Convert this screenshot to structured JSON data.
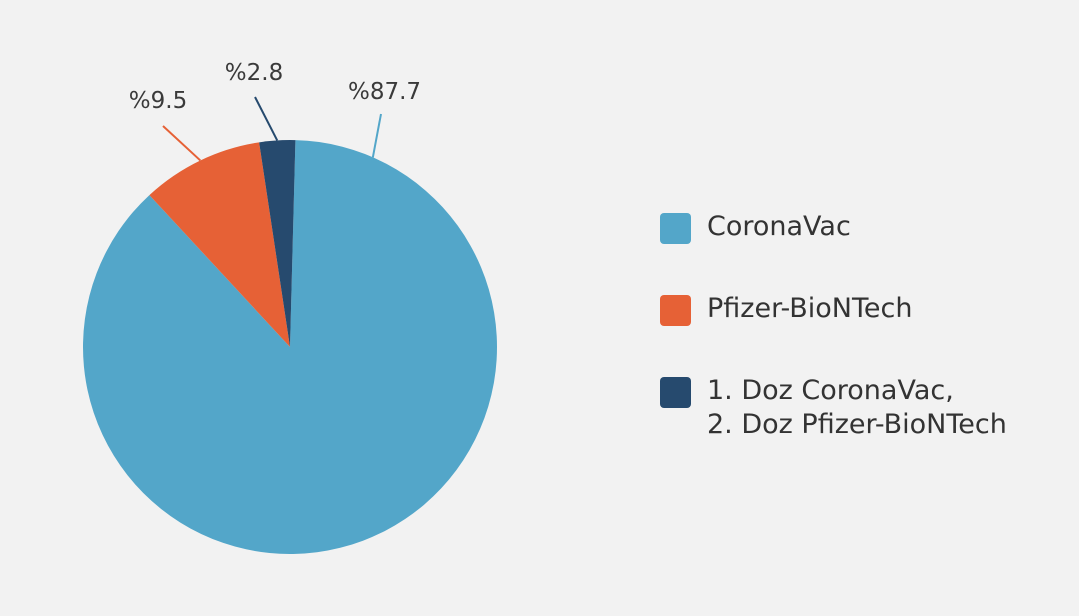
{
  "chart_data": {
    "type": "pie",
    "slices": [
      {
        "value": 87.7,
        "label": "%87.7",
        "legend": [
          "CoronaVac"
        ],
        "color": "#53a6c9"
      },
      {
        "value": 9.5,
        "label": "%9.5",
        "legend": [
          "Pfizer-BioNTech"
        ],
        "color": "#e66136"
      },
      {
        "value": 2.8,
        "label": "%2.8",
        "legend": [
          "1. Doz CoronaVac,",
          "2. Doz Pfizer-BioNTech"
        ],
        "color": "#264a6e"
      }
    ],
    "legend_position": "right",
    "start_angle": "top, clockwise"
  }
}
